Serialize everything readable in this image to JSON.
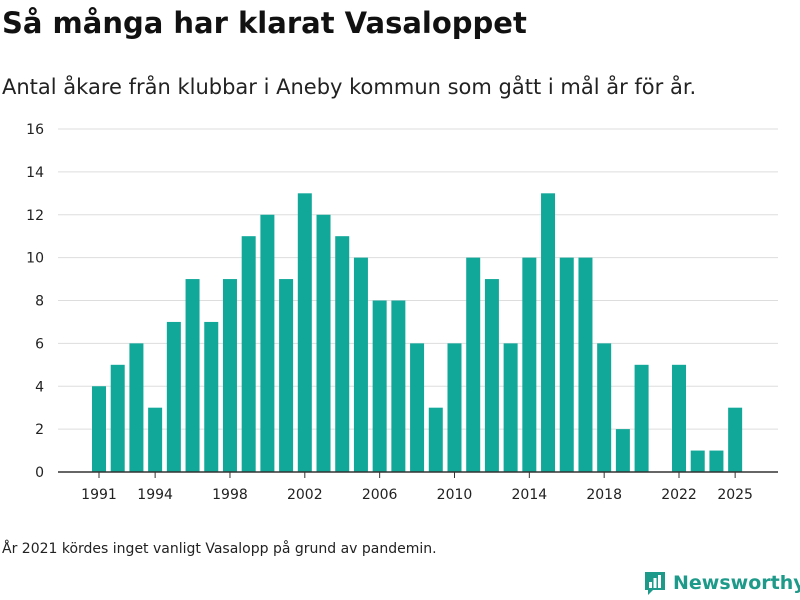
{
  "title": "Så många har klarat Vasaloppet",
  "subtitle": "Antal åkare från klubbar i Aneby kommun som gått i mål år för år.",
  "footnote": "År 2021 kördes inget vanligt Vasalopp på grund av pandemin.",
  "brand": {
    "name": "Newsworthy",
    "icon": "newsworthy-logo-icon"
  },
  "colors": {
    "bar": "#11a89a",
    "grid": "#dddddd",
    "axis": "#333333",
    "brand": "#1e9a8a"
  },
  "chart_data": {
    "type": "bar",
    "title": "",
    "xlabel": "",
    "ylabel": "",
    "ylim": [
      0,
      16
    ],
    "yticks": [
      0,
      2,
      4,
      6,
      8,
      10,
      12,
      14,
      16
    ],
    "xticks": [
      1991,
      1994,
      1998,
      2002,
      2006,
      2010,
      2014,
      2018,
      2022,
      2025
    ],
    "grid": true,
    "legend": false,
    "categories": [
      1991,
      1992,
      1993,
      1994,
      1995,
      1996,
      1997,
      1998,
      1999,
      2000,
      2001,
      2002,
      2003,
      2004,
      2005,
      2006,
      2007,
      2008,
      2009,
      2010,
      2011,
      2012,
      2013,
      2014,
      2015,
      2016,
      2017,
      2018,
      2019,
      2020,
      2021,
      2022,
      2023,
      2024,
      2025
    ],
    "values": [
      4,
      5,
      6,
      3,
      7,
      9,
      7,
      9,
      11,
      12,
      9,
      13,
      12,
      11,
      10,
      8,
      8,
      6,
      3,
      6,
      10,
      9,
      6,
      10,
      13,
      10,
      10,
      6,
      2,
      5,
      null,
      5,
      1,
      1,
      3
    ]
  }
}
